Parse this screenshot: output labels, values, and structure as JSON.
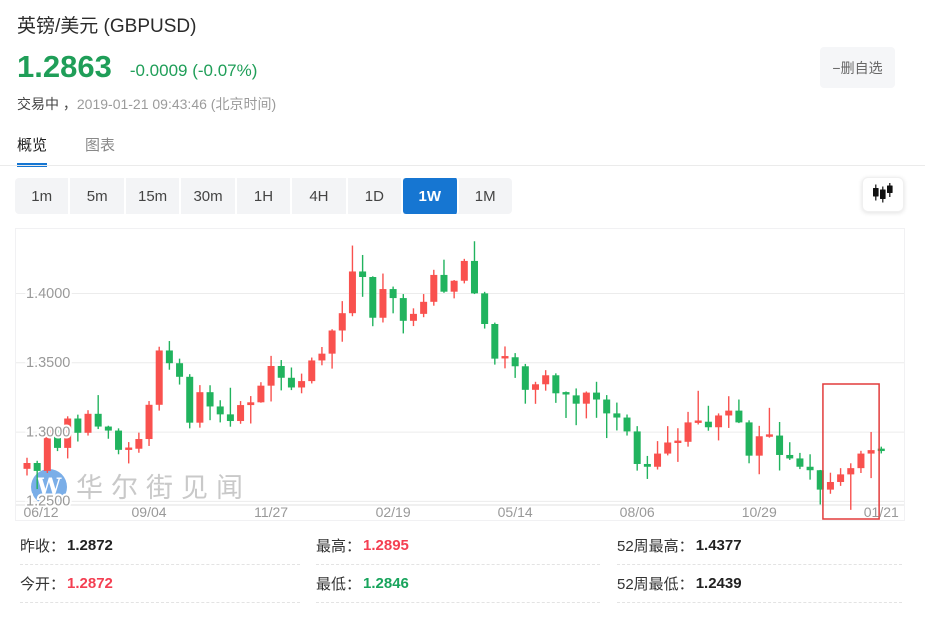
{
  "header": {
    "title": "英镑/美元  (GBPUSD)",
    "price": "1.2863",
    "change": "-0.0009 (-0.07%)",
    "price_color": "#1f9e58",
    "status": "交易中 ，",
    "timestamp": "2019-01-21 09:43:46  (北京时间)",
    "watchlist_button": "−删自选"
  },
  "tabs": [
    {
      "label": "概览",
      "active": true
    },
    {
      "label": "图表",
      "active": false
    }
  ],
  "toolbar": {
    "timeframes": [
      "1m",
      "5m",
      "15m",
      "30m",
      "1H",
      "4H",
      "1D",
      "1W",
      "1M"
    ],
    "active_timeframe": "1W",
    "active_color": "#1676d2",
    "chart_type_icon": "candlestick-icon"
  },
  "watermark": {
    "logo_letter": "W",
    "logo_color": "#7aaee8",
    "text": "华尔街见闻",
    "text_color": "#c9c9c9"
  },
  "stats": {
    "columns": [
      [
        {
          "label": "昨收：",
          "value": "1.2872",
          "color": "#222222"
        },
        {
          "label": "今开：",
          "value": "1.2872",
          "color": "#f43f52"
        }
      ],
      [
        {
          "label": "最高：",
          "value": "1.2895",
          "color": "#f43f52"
        },
        {
          "label": "最低：",
          "value": "1.2846",
          "color": "#18a45c"
        }
      ],
      [
        {
          "label": "52周最高：",
          "value": "1.4377",
          "color": "#222222"
        },
        {
          "label": "52周最低：",
          "value": "1.2439",
          "color": "#222222"
        }
      ]
    ]
  },
  "chart_data": {
    "type": "candlestick",
    "interval": "1W",
    "color_convention": "chinese: red = up, green = down",
    "up_color": "#f9514e",
    "down_color": "#21b35e",
    "grid_color": "#ececec",
    "axis_color": "#e0e0e0",
    "tick_label_color": "#999999",
    "ylim": [
      1.245,
      1.4465
    ],
    "y_ticks": [
      {
        "value": 1.4,
        "label": "1.4000"
      },
      {
        "value": 1.35,
        "label": "1.3500"
      },
      {
        "value": 1.3,
        "label": "1.3000"
      },
      {
        "value": 1.25,
        "label": "1.2500"
      }
    ],
    "x_tick_labels": [
      "06/12",
      "09/04",
      "11/27",
      "02/19",
      "05/14",
      "08/06",
      "10/29",
      "01/21"
    ],
    "x_tick_indices": [
      0,
      12,
      24,
      36,
      48,
      60,
      72,
      84
    ],
    "highlight_box": {
      "start_index": 79,
      "end_index": 83,
      "color": "#e23b3b"
    },
    "candles_format": [
      "open",
      "high",
      "low",
      "close"
    ],
    "candles": [
      [
        1.2735,
        1.2815,
        1.2687,
        1.2777
      ],
      [
        1.2777,
        1.2793,
        1.2589,
        1.272
      ],
      [
        1.272,
        1.303,
        1.2705,
        1.3025
      ],
      [
        1.3025,
        1.3047,
        1.2863,
        1.2886
      ],
      [
        1.2886,
        1.3114,
        1.281,
        1.3098
      ],
      [
        1.3098,
        1.3126,
        1.2932,
        1.2995
      ],
      [
        1.2995,
        1.3158,
        1.2975,
        1.3132
      ],
      [
        1.3132,
        1.3267,
        1.3022,
        1.304
      ],
      [
        1.304,
        1.3046,
        1.2952,
        1.3011
      ],
      [
        1.3011,
        1.3027,
        1.284,
        1.2872
      ],
      [
        1.2872,
        1.2928,
        1.2774,
        1.288
      ],
      [
        1.288,
        1.2996,
        1.2851,
        1.295
      ],
      [
        1.295,
        1.3224,
        1.29,
        1.3197
      ],
      [
        1.3197,
        1.3616,
        1.3155,
        1.3589
      ],
      [
        1.3589,
        1.3657,
        1.345,
        1.3497
      ],
      [
        1.3497,
        1.353,
        1.3343,
        1.3399
      ],
      [
        1.3399,
        1.3418,
        1.3027,
        1.3068
      ],
      [
        1.3068,
        1.3339,
        1.3032,
        1.3288
      ],
      [
        1.3288,
        1.3338,
        1.3086,
        1.3185
      ],
      [
        1.3185,
        1.323,
        1.307,
        1.3128
      ],
      [
        1.3128,
        1.332,
        1.3039,
        1.308
      ],
      [
        1.308,
        1.3224,
        1.306,
        1.3195
      ],
      [
        1.3195,
        1.326,
        1.3062,
        1.3215
      ],
      [
        1.3215,
        1.336,
        1.3212,
        1.3335
      ],
      [
        1.3335,
        1.355,
        1.3221,
        1.3477
      ],
      [
        1.3477,
        1.352,
        1.3301,
        1.3392
      ],
      [
        1.3392,
        1.3466,
        1.3303,
        1.3322
      ],
      [
        1.3322,
        1.3422,
        1.328,
        1.3368
      ],
      [
        1.3368,
        1.3538,
        1.3351,
        1.3517
      ],
      [
        1.3517,
        1.3614,
        1.3482,
        1.3566
      ],
      [
        1.3566,
        1.3742,
        1.3458,
        1.3733
      ],
      [
        1.3733,
        1.3945,
        1.3652,
        1.3858
      ],
      [
        1.3858,
        1.4346,
        1.3836,
        1.4159
      ],
      [
        1.4159,
        1.4278,
        1.3976,
        1.4119
      ],
      [
        1.4119,
        1.4124,
        1.3764,
        1.3825
      ],
      [
        1.3825,
        1.4144,
        1.3791,
        1.4032
      ],
      [
        1.4032,
        1.405,
        1.3857,
        1.3967
      ],
      [
        1.3967,
        1.3996,
        1.3712,
        1.3803
      ],
      [
        1.3803,
        1.3893,
        1.3765,
        1.3853
      ],
      [
        1.3853,
        1.3996,
        1.3829,
        1.394
      ],
      [
        1.394,
        1.4171,
        1.3912,
        1.4134
      ],
      [
        1.4134,
        1.4244,
        1.4005,
        1.4013
      ],
      [
        1.4013,
        1.4097,
        1.3965,
        1.4092
      ],
      [
        1.4092,
        1.425,
        1.4073,
        1.4235
      ],
      [
        1.4235,
        1.4377,
        1.3996,
        1.4001
      ],
      [
        1.4001,
        1.4012,
        1.3747,
        1.378
      ],
      [
        1.378,
        1.379,
        1.3487,
        1.353
      ],
      [
        1.353,
        1.3618,
        1.346,
        1.354
      ],
      [
        1.354,
        1.357,
        1.3391,
        1.3475
      ],
      [
        1.3475,
        1.3492,
        1.3205,
        1.3305
      ],
      [
        1.3305,
        1.3363,
        1.3204,
        1.3345
      ],
      [
        1.3345,
        1.3447,
        1.3299,
        1.341
      ],
      [
        1.341,
        1.3424,
        1.3211,
        1.328
      ],
      [
        1.328,
        1.3293,
        1.3102,
        1.3265
      ],
      [
        1.3265,
        1.3315,
        1.305,
        1.3205
      ],
      [
        1.3205,
        1.3293,
        1.3099,
        1.3285
      ],
      [
        1.3285,
        1.3363,
        1.3103,
        1.3235
      ],
      [
        1.3235,
        1.3267,
        1.2957,
        1.3135
      ],
      [
        1.3135,
        1.3213,
        1.3012,
        1.3105
      ],
      [
        1.3105,
        1.3127,
        1.2975,
        1.3005
      ],
      [
        1.3005,
        1.3043,
        1.2722,
        1.277
      ],
      [
        1.277,
        1.2828,
        1.2662,
        1.275
      ],
      [
        1.275,
        1.2935,
        1.273,
        1.2845
      ],
      [
        1.2845,
        1.3043,
        1.2832,
        1.2925
      ],
      [
        1.2925,
        1.3028,
        1.2785,
        1.293
      ],
      [
        1.293,
        1.3146,
        1.2895,
        1.307
      ],
      [
        1.307,
        1.3298,
        1.3055,
        1.3075
      ],
      [
        1.3075,
        1.319,
        1.301,
        1.3035
      ],
      [
        1.3035,
        1.3135,
        1.294,
        1.312
      ],
      [
        1.312,
        1.3259,
        1.303,
        1.3155
      ],
      [
        1.3155,
        1.3235,
        1.3065,
        1.307
      ],
      [
        1.307,
        1.3085,
        1.2775,
        1.283
      ],
      [
        1.283,
        1.3045,
        1.2696,
        1.297
      ],
      [
        1.297,
        1.3175,
        1.296,
        1.2975
      ],
      [
        1.2975,
        1.3073,
        1.2723,
        1.2835
      ],
      [
        1.2835,
        1.2927,
        1.2799,
        1.281
      ],
      [
        1.281,
        1.285,
        1.2733,
        1.275
      ],
      [
        1.275,
        1.284,
        1.2657,
        1.2725
      ],
      [
        1.2725,
        1.2727,
        1.2478,
        1.2585
      ],
      [
        1.2585,
        1.2707,
        1.2555,
        1.264
      ],
      [
        1.264,
        1.274,
        1.2612,
        1.2695
      ],
      [
        1.2695,
        1.2775,
        1.2439,
        1.274
      ],
      [
        1.274,
        1.2865,
        1.2705,
        1.2845
      ],
      [
        1.2845,
        1.3001,
        1.2668,
        1.287
      ],
      [
        1.2872,
        1.2895,
        1.2846,
        1.2863
      ]
    ]
  }
}
